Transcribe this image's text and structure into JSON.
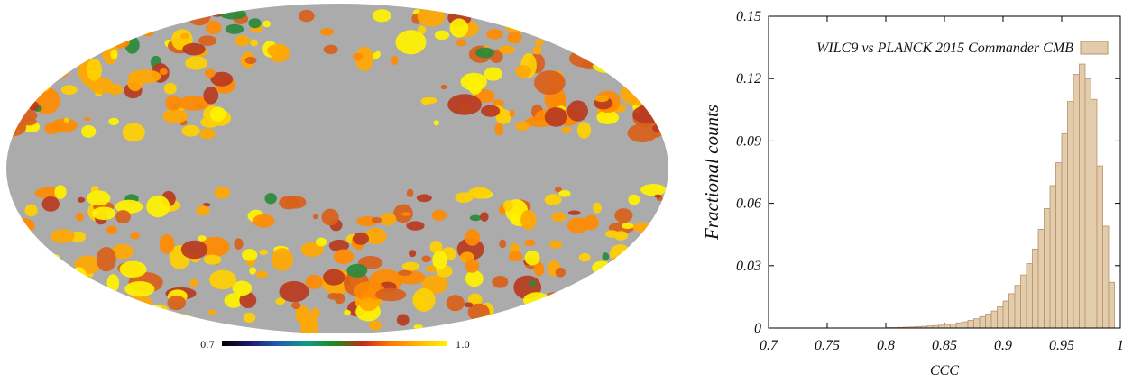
{
  "map": {
    "colorbar": {
      "min_label": "0.7",
      "max_label": "1.0",
      "colors": [
        "#000000",
        "#1a1a6e",
        "#1f5fb0",
        "#0f9a86",
        "#1e8a1e",
        "#c8281a",
        "#ff7a00",
        "#ffb800",
        "#fff200"
      ]
    },
    "masked_color": "#ababab",
    "patch_colors": [
      "#ffd000",
      "#fff200",
      "#ffa800",
      "#ff8a00",
      "#d9601a",
      "#b83a20",
      "#2a8a3a"
    ]
  },
  "chart_data": {
    "type": "bar",
    "title": "",
    "xlabel": "CCC",
    "ylabel": "Fractional counts",
    "xlim": [
      0.7,
      1.0
    ],
    "ylim": [
      0,
      0.15
    ],
    "xticks": [
      "0.7",
      "0.75",
      "0.8",
      "0.85",
      "0.9",
      "0.95",
      "1"
    ],
    "yticks": [
      "0",
      "0.03",
      "0.06",
      "0.09",
      "0.12",
      "0.15"
    ],
    "legend": {
      "label": "WILC9 vs PLANCK 2015 Commander CMB",
      "position": "top-right"
    },
    "bar_color": "#e3ccac",
    "bar_edge": "#b7926a",
    "bin_width": 0.005,
    "bins": [
      0.8,
      0.805,
      0.81,
      0.815,
      0.82,
      0.825,
      0.83,
      0.835,
      0.84,
      0.845,
      0.85,
      0.855,
      0.86,
      0.865,
      0.87,
      0.875,
      0.88,
      0.885,
      0.89,
      0.895,
      0.9,
      0.905,
      0.91,
      0.915,
      0.92,
      0.925,
      0.93,
      0.935,
      0.94,
      0.945,
      0.95,
      0.955,
      0.96,
      0.965,
      0.97,
      0.975,
      0.98,
      0.985,
      0.99,
      0.995
    ],
    "values": [
      0.0002,
      0.0002,
      0.0003,
      0.0004,
      0.0005,
      0.0007,
      0.0008,
      0.001,
      0.0012,
      0.0014,
      0.0017,
      0.002,
      0.0025,
      0.003,
      0.0037,
      0.0045,
      0.0055,
      0.0067,
      0.0082,
      0.0102,
      0.013,
      0.0165,
      0.0205,
      0.0255,
      0.031,
      0.038,
      0.0475,
      0.0575,
      0.0685,
      0.0795,
      0.0935,
      0.109,
      0.122,
      0.127,
      0.12,
      0.11,
      0.078,
      0.049,
      0.022,
      0.0
    ]
  }
}
